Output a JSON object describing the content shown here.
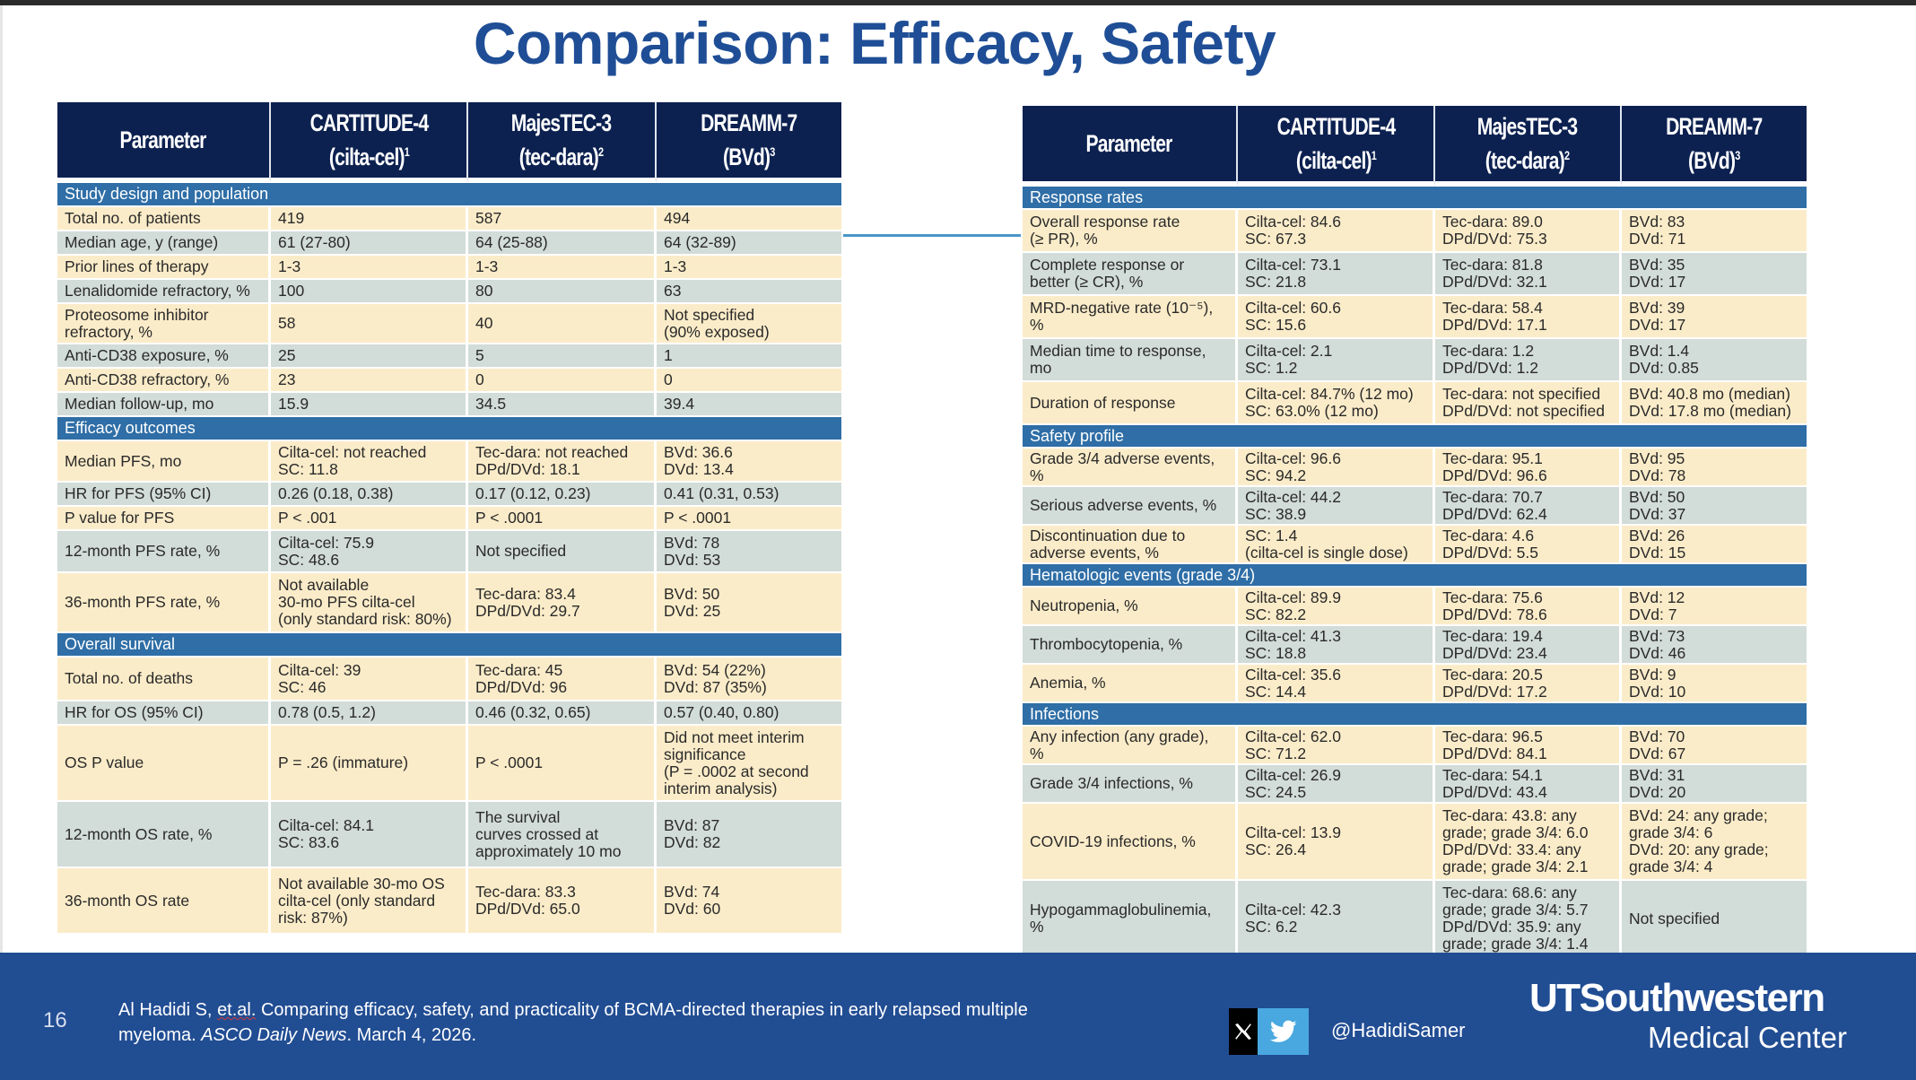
{
  "slide": {
    "title": "Comparison: Efficacy, Safety",
    "number": "16"
  },
  "columns": {
    "parameter": "Parameter",
    "c1_line1": "CARTITUDE-4",
    "c1_line2": "(cilta-cel)",
    "c1_ref": "1",
    "c2_line1": "MajesTEC-3",
    "c2_line2": "(tec-dara)",
    "c2_ref": "2",
    "c3_line1": "DREAMM-7",
    "c3_line2": "(BVd)",
    "c3_ref": "3"
  },
  "left_table": {
    "sections": [
      {
        "title": "Study design and population",
        "rows": [
          [
            "Total no. of patients",
            "419",
            "587",
            "494"
          ],
          [
            "Median age, y (range)",
            "61 (27-80)",
            "64 (25-88)",
            "64 (32-89)"
          ],
          [
            "Prior lines of therapy",
            "1-3",
            "1-3",
            "1-3"
          ],
          [
            "Lenalidomide refractory, %",
            "100",
            "80",
            "63"
          ],
          [
            "Proteosome inhibitor\nrefractory, %",
            "58",
            "40",
            "Not specified\n(90% exposed)"
          ],
          [
            "Anti-CD38 exposure, %",
            "25",
            "5",
            "1"
          ],
          [
            "Anti-CD38 refractory, %",
            "23",
            "0",
            "0"
          ],
          [
            "Median follow-up, mo",
            "15.9",
            "34.5",
            "39.4"
          ]
        ]
      },
      {
        "title": "Efficacy outcomes",
        "rows": [
          [
            "Median PFS, mo",
            "Cilta-cel: not reached\nSC: 11.8",
            "Tec-dara: not reached\nDPd/DVd: 18.1",
            "BVd: 36.6\nDVd: 13.4"
          ],
          [
            "HR for PFS (95% CI)",
            "0.26 (0.18, 0.38)",
            "0.17 (0.12, 0.23)",
            "0.41 (0.31, 0.53)"
          ],
          [
            "P value for PFS",
            "P < .001",
            "P < .0001",
            "P < .0001"
          ],
          [
            "12-month PFS rate, %",
            "Cilta-cel: 75.9\nSC: 48.6",
            "Not specified",
            "BVd: 78\nDVd: 53"
          ],
          [
            "36-month PFS rate, %",
            "Not available\n30-mo PFS cilta-cel\n(only standard risk: 80%)",
            "Tec-dara: 83.4\nDPd/DVd: 29.7",
            "BVd: 50\nDVd: 25"
          ]
        ]
      },
      {
        "title": "Overall survival",
        "rows": [
          [
            "Total no. of deaths",
            "Cilta-cel: 39\nSC: 46",
            "Tec-dara: 45\nDPd/DVd: 96",
            "BVd: 54 (22%)\nDVd: 87 (35%)"
          ],
          [
            "HR for OS (95% CI)",
            "0.78 (0.5, 1.2)",
            "0.46 (0.32, 0.65)",
            "0.57 (0.40, 0.80)"
          ],
          [
            "OS P value",
            "P = .26 (immature)",
            "P < .0001",
            "Did not meet interim\nsignificance\n(P = .0002 at second\ninterim analysis)"
          ],
          [
            "12-month OS rate, %",
            "Cilta-cel: 84.1\nSC: 83.6",
            "The survival\ncurves crossed at\napproximately 10 mo",
            "BVd: 87\nDVd: 82"
          ],
          [
            "36-month OS rate",
            "Not available 30-mo OS\ncilta-cel (only standard\nrisk: 87%)",
            "Tec-dara: 83.3\nDPd/DVd: 65.0",
            "BVd: 74\nDVd: 60"
          ]
        ]
      }
    ]
  },
  "right_table": {
    "sections": [
      {
        "title": "Response rates",
        "rows": [
          [
            "Overall response rate\n(≥ PR), %",
            "Cilta-cel: 84.6\nSC: 67.3",
            "Tec-dara: 89.0\nDPd/DVd: 75.3",
            "BVd: 83\nDVd: 71"
          ],
          [
            "Complete response or\nbetter (≥ CR), %",
            "Cilta-cel: 73.1\nSC: 21.8",
            "Tec-dara: 81.8\nDPd/DVd: 32.1",
            "BVd: 35\nDVd: 17"
          ],
          [
            "MRD-negative rate (10⁻⁵),\n%",
            "Cilta-cel: 60.6\nSC: 15.6",
            "Tec-dara: 58.4\nDPd/DVd: 17.1",
            "BVd: 39\nDVd: 17"
          ],
          [
            "Median time to response,\nmo",
            "Cilta-cel: 2.1\nSC: 1.2",
            "Tec-dara: 1.2\nDPd/DVd: 1.2",
            "BVd: 1.4\nDVd: 0.85"
          ],
          [
            "Duration of response",
            "Cilta-cel: 84.7% (12 mo)\nSC: 63.0% (12 mo)",
            "Tec-dara: not specified\nDPd/DVd: not specified",
            "BVd: 40.8 mo (median)\nDVd: 17.8 mo (median)"
          ]
        ]
      },
      {
        "title": "Safety profile",
        "rows": [
          [
            "Grade 3/4 adverse events,\n%",
            "Cilta-cel: 96.6\nSC: 94.2",
            "Tec-dara: 95.1\nDPd/DVd: 96.6",
            "BVd: 95\nDVd: 78"
          ],
          [
            "Serious adverse events, %",
            "Cilta-cel: 44.2\nSC: 38.9",
            "Tec-dara: 70.7\nDPd/DVd: 62.4",
            "BVd: 50\nDVd: 37"
          ],
          [
            "Discontinuation due to\nadverse events, %",
            "SC: 1.4\n(cilta-cel is single dose)",
            "Tec-dara: 4.6\nDPd/DVd: 5.5",
            "BVd: 26\nDVd: 15"
          ]
        ]
      },
      {
        "title": "Hematologic events  (grade 3/4)",
        "rows": [
          [
            "Neutropenia, %",
            "Cilta-cel: 89.9\nSC: 82.2",
            "Tec-dara: 75.6\nDPd/DVd: 78.6",
            "BVd: 12\nDVd: 7"
          ],
          [
            "Thrombocytopenia, %",
            "Cilta-cel: 41.3\nSC: 18.8",
            "Tec-dara: 19.4\nDPd/DVd: 23.4",
            "BVd: 73\nDVd: 46"
          ],
          [
            "Anemia, %",
            "Cilta-cel: 35.6\nSC: 14.4",
            "Tec-dara: 20.5\nDPd/DVd: 17.2",
            "BVd: 9\nDVd: 10"
          ]
        ]
      },
      {
        "title": "Infections",
        "rows": [
          [
            "Any infection (any grade),\n%",
            "Cilta-cel: 62.0\nSC: 71.2",
            "Tec-dara: 96.5\nDPd/DVd: 84.1",
            "BVd: 70\nDVd: 67"
          ],
          [
            "Grade 3/4 infections, %",
            "Cilta-cel: 26.9\nSC: 24.5",
            "Tec-dara: 54.1\nDPd/DVd: 43.4",
            "BVd: 31\nDVd: 20"
          ],
          [
            "COVID-19 infections, %",
            "Cilta-cel: 13.9\nSC: 26.4",
            "Tec-dara: 43.8: any\ngrade; grade 3/4: 6.0\nDPd/DVd: 33.4: any\ngrade; grade 3/4: 2.1",
            "BVd: 24: any grade;\ngrade 3/4: 6\nDVd: 20: any grade;\ngrade 3/4: 4"
          ],
          [
            "Hypogammaglobulinemia,\n%",
            "Cilta-cel: 42.3\nSC: 6.2",
            "Tec-dara: 68.6: any\ngrade; grade 3/4: 5.7\nDPd/DVd: 35.9: any\ngrade; grade 3/4: 1.4",
            "Not specified"
          ]
        ]
      }
    ]
  },
  "footer": {
    "citation_part1": "Al Hadidi S, ",
    "citation_etal": "et.al.",
    "citation_part2": " Comparing efficacy, safety, and practicality of BCMA-directed therapies in early relapsed multiple myeloma. ",
    "citation_journal": "ASCO Daily News",
    "citation_part3": ". March 4, 2026.",
    "social_handle": "@HadidiSamer",
    "logo_line1": "UTSouthwestern",
    "logo_line2": "Medical Center",
    "icons": {
      "x": "x-logo-icon",
      "twitter": "twitter-bird-icon"
    },
    "colors": {
      "footer_bg": "#214d93",
      "twitter_bg": "#4aa8e0"
    }
  },
  "theme": {
    "title_color": "#1f4e96",
    "header_bg": "#0c2150",
    "section_bg": "#2f6ea6",
    "row_odd_bg": "#fbecc9",
    "row_even_bg": "#d2dcd8",
    "connector_color": "#4a96c6"
  }
}
